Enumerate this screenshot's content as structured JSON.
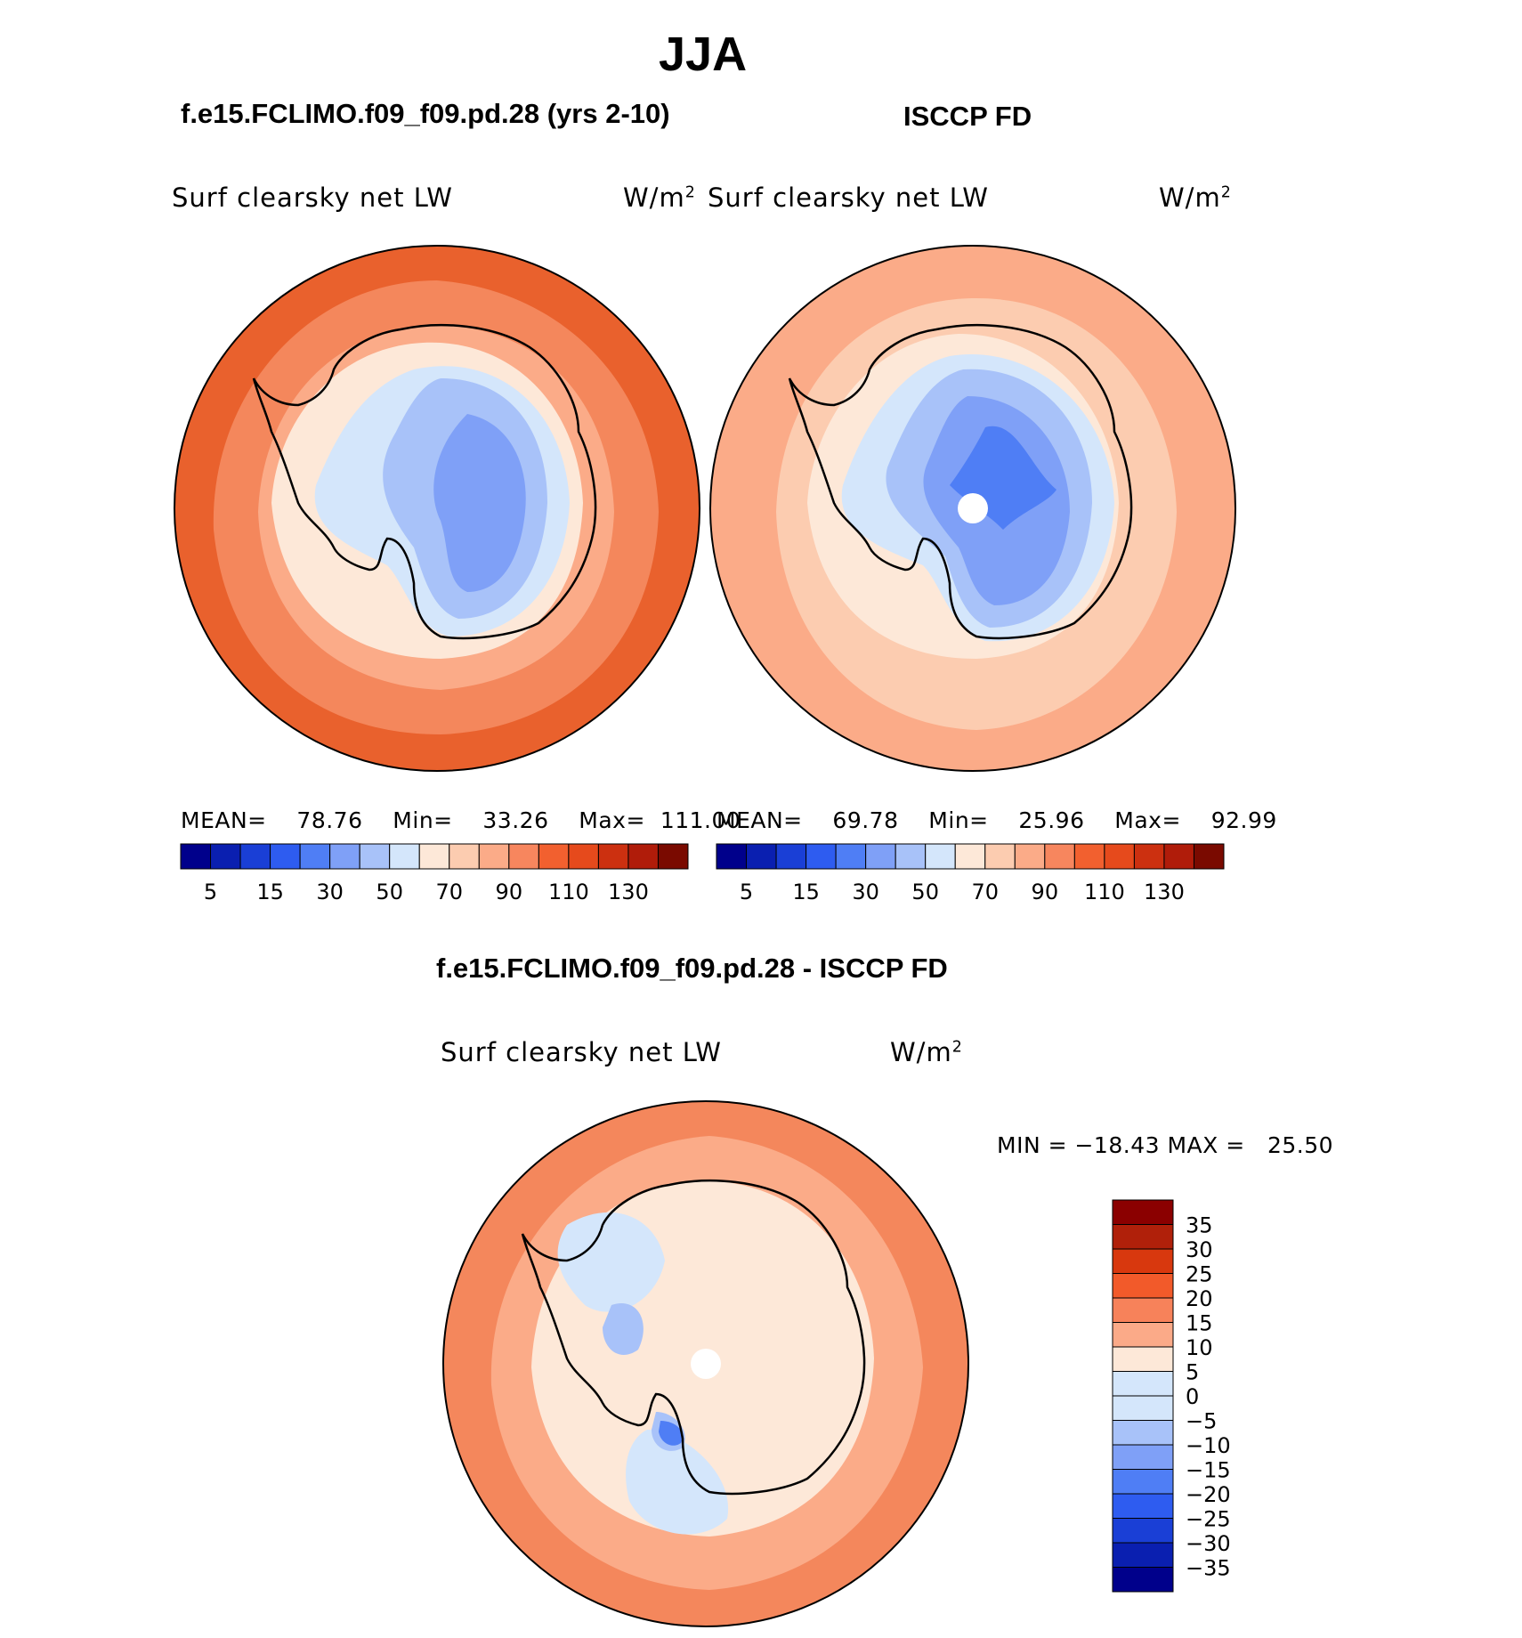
{
  "title": "JJA",
  "panels": {
    "left": {
      "case": "f.e15.FCLIMO.f09_f09.pd.28 (yrs 2-10)",
      "variable": "Surf clearsky net LW",
      "units_base": "W/m",
      "units_exp": "2",
      "stats": {
        "mean_label": "MEAN=",
        "mean": "78.76",
        "min_label": "Min=",
        "min": "33.26",
        "max_label": "Max=",
        "max": "111.00"
      }
    },
    "right": {
      "case": "ISCCP FD",
      "variable": "Surf clearsky net LW",
      "units_base": "W/m",
      "units_exp": "2",
      "stats": {
        "mean_label": "MEAN=",
        "mean": "69.78",
        "min_label": "Min=",
        "min": "25.96",
        "max_label": "Max=",
        "max": "92.99"
      }
    },
    "diff": {
      "case": "f.e15.FCLIMO.f09_f09.pd.28 - ISCCP FD",
      "variable": "Surf clearsky net LW",
      "units_base": "W/m",
      "units_exp": "2",
      "minmax": "MIN = −18.43 MAX =   25.50"
    }
  },
  "colorbar_main": {
    "colors": [
      "#00008b",
      "#0a1fb0",
      "#1a3fd6",
      "#2e5cf0",
      "#4f7ef5",
      "#7fa0f7",
      "#a8c2f9",
      "#d4e6fb",
      "#fde8d8",
      "#fcccb0",
      "#fbab88",
      "#f7865e",
      "#f2602f",
      "#e64a1c",
      "#cc3010",
      "#b01c0a",
      "#7a0a00"
    ],
    "labels": [
      "5",
      "15",
      "30",
      "50",
      "70",
      "90",
      "110",
      "130"
    ]
  },
  "colorbar_diff": {
    "colors": [
      "#8b0000",
      "#b0200a",
      "#d8380e",
      "#f25a2a",
      "#f7825a",
      "#fbaa88",
      "#fde8d8",
      "#d4e6fb",
      "#a8c2f9",
      "#7fa0f7",
      "#4f7ef5",
      "#2e5cf0",
      "#1a3fd6",
      "#0a1fb0",
      "#00008b"
    ],
    "labels": [
      "35",
      "30",
      "25",
      "20",
      "15",
      "10",
      "5",
      "0",
      "−5",
      "−10",
      "−15",
      "−20",
      "−25",
      "−30",
      "−35"
    ]
  },
  "map_colors": {
    "left": [
      "#e9612d",
      "#f4875c",
      "#fbab88",
      "#fde8d8",
      "#d4e6fb",
      "#a8c2f9",
      "#7fa0f7"
    ],
    "right": [
      "#fbab88",
      "#fcccb0",
      "#fde8d8",
      "#d4e6fb",
      "#a8c2f9",
      "#7fa0f7",
      "#4f7ef5"
    ],
    "diff": [
      "#f4875c",
      "#fbab88",
      "#fde8d8",
      "#d4e6fb",
      "#a8c2f9",
      "#4f7ef5"
    ]
  }
}
